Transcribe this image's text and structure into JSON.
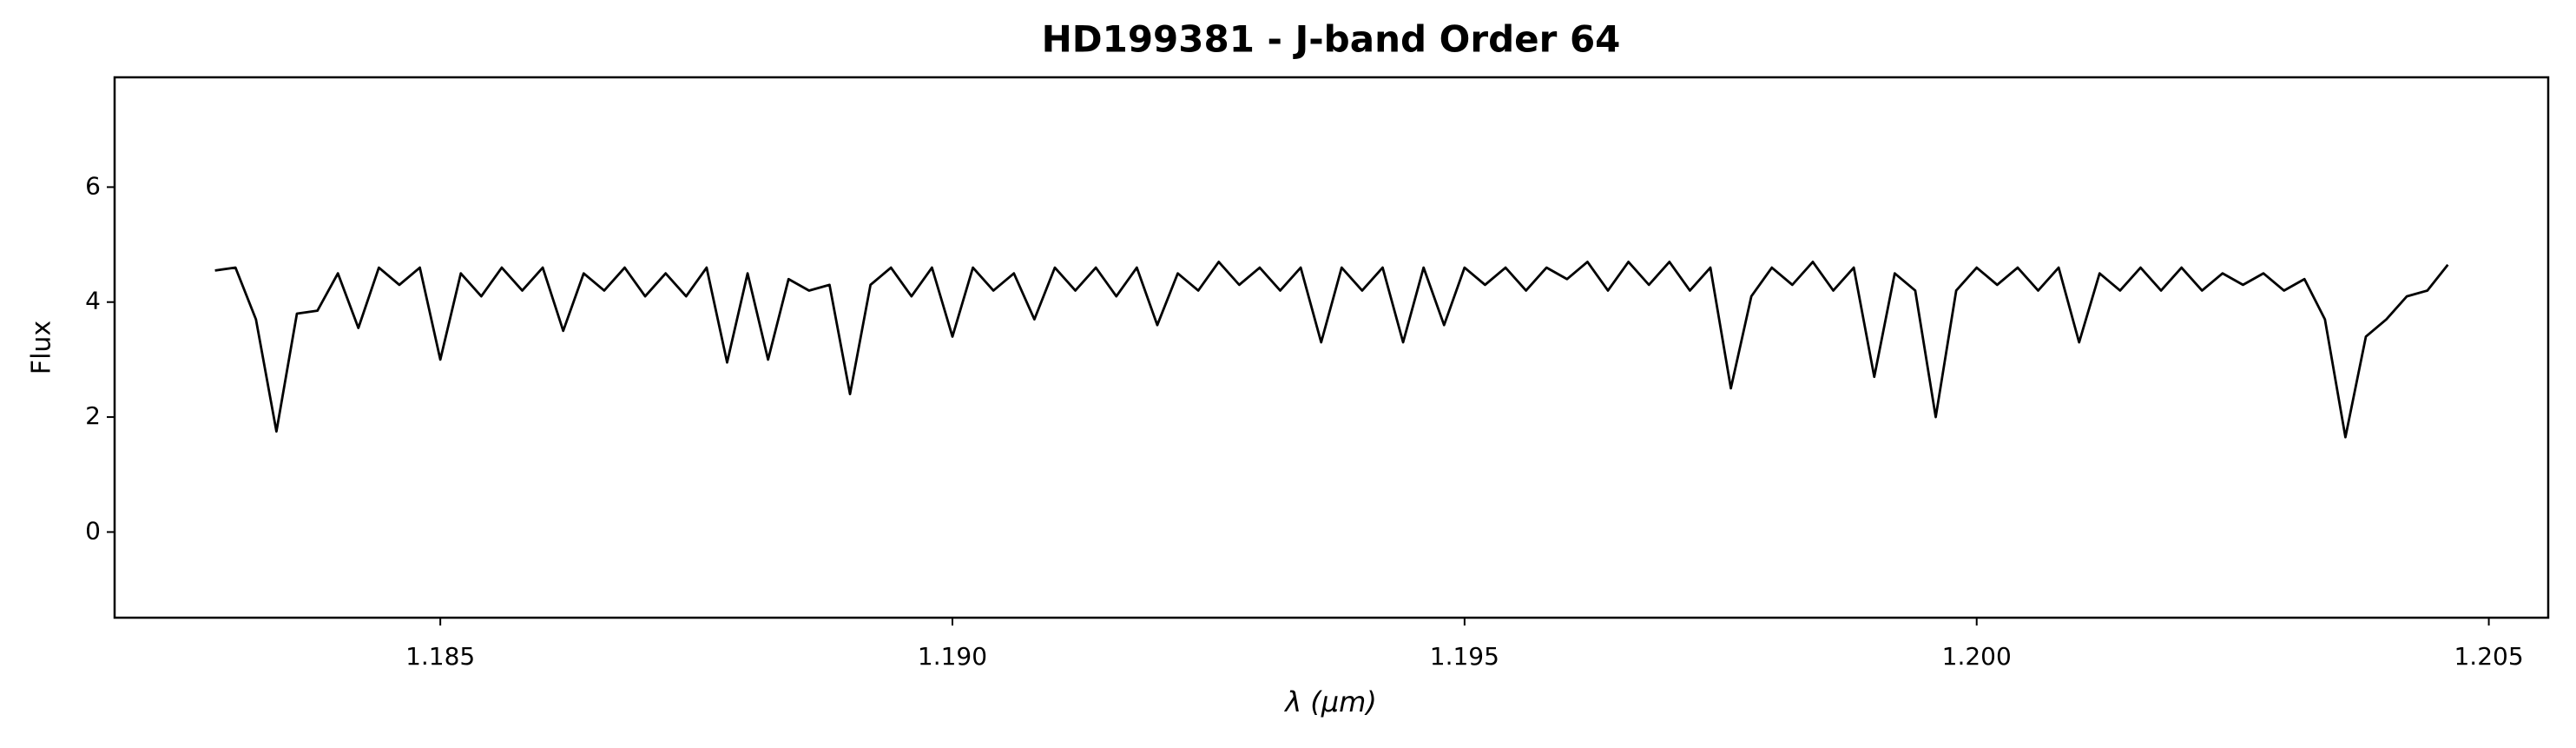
{
  "chart_data": {
    "type": "line",
    "title": "HD199381 - J-band Order 64",
    "xlabel": "λ (μm)",
    "ylabel": "Flux",
    "x": [
      1.1828,
      1.183,
      1.1832,
      1.1834,
      1.1836,
      1.1838,
      1.184,
      1.1842,
      1.1844,
      1.1846,
      1.1848,
      1.185,
      1.1852,
      1.1854,
      1.1856,
      1.1858,
      1.186,
      1.1862,
      1.1864,
      1.1866,
      1.1868,
      1.187,
      1.1872,
      1.1874,
      1.1876,
      1.1878,
      1.188,
      1.1882,
      1.1884,
      1.1886,
      1.1888,
      1.189,
      1.1892,
      1.1894,
      1.1896,
      1.1898,
      1.19,
      1.1902,
      1.1904,
      1.1906,
      1.1908,
      1.191,
      1.1912,
      1.1914,
      1.1916,
      1.1918,
      1.192,
      1.1922,
      1.1924,
      1.1926,
      1.1928,
      1.193,
      1.1932,
      1.1934,
      1.1936,
      1.1938,
      1.194,
      1.1942,
      1.1944,
      1.1946,
      1.1948,
      1.195,
      1.1952,
      1.1954,
      1.1956,
      1.1958,
      1.196,
      1.1962,
      1.1964,
      1.1966,
      1.1968,
      1.197,
      1.1972,
      1.1974,
      1.1976,
      1.1978,
      1.198,
      1.1982,
      1.1984,
      1.1986,
      1.1988,
      1.199,
      1.1992,
      1.1994,
      1.1996,
      1.1998,
      1.2,
      1.2002,
      1.2004,
      1.2006,
      1.2008,
      1.201,
      1.2012,
      1.2014,
      1.2016,
      1.2018,
      1.202,
      1.2022,
      1.2024,
      1.2026,
      1.2028,
      1.203,
      1.2032,
      1.2034,
      1.2036,
      1.2038,
      1.204,
      1.2042,
      1.2044,
      1.2046
    ],
    "series": [
      {
        "name": "Flux",
        "color": "#000000",
        "values": [
          4.55,
          4.6,
          3.7,
          1.75,
          3.8,
          3.85,
          4.5,
          3.55,
          4.6,
          4.3,
          4.6,
          3.0,
          4.5,
          4.1,
          4.6,
          4.2,
          4.6,
          3.5,
          4.5,
          4.2,
          4.6,
          4.1,
          4.5,
          4.1,
          4.6,
          2.95,
          4.5,
          3.0,
          4.4,
          4.2,
          4.3,
          2.4,
          4.3,
          4.6,
          4.1,
          4.6,
          3.4,
          4.6,
          4.2,
          4.5,
          3.7,
          4.6,
          4.2,
          4.6,
          4.1,
          4.6,
          3.6,
          4.5,
          4.2,
          4.7,
          4.3,
          4.6,
          4.2,
          4.6,
          3.3,
          4.6,
          4.2,
          4.6,
          3.3,
          4.6,
          3.6,
          4.6,
          4.3,
          4.6,
          4.2,
          4.6,
          4.4,
          4.7,
          4.2,
          4.7,
          4.3,
          4.7,
          4.2,
          4.6,
          2.5,
          4.1,
          4.6,
          4.3,
          4.7,
          4.2,
          4.6,
          2.7,
          4.5,
          4.2,
          2.0,
          4.2,
          4.6,
          4.3,
          4.6,
          4.2,
          4.6,
          3.3,
          4.5,
          4.2,
          4.6,
          4.2,
          4.6,
          4.2,
          4.5,
          4.3,
          4.5,
          4.2,
          4.4,
          3.7,
          1.65,
          3.4,
          3.7,
          4.1,
          4.2,
          4.65
        ]
      }
    ],
    "xlim": [
      1.18182,
      1.20558
    ],
    "ylim": [
      -1.49,
      7.91
    ],
    "xticks": [
      1.185,
      {
        "value": 1.19,
        "label": "1.190"
      },
      1.195,
      {
        "value": 1.2,
        "label": "1.200"
      },
      1.205
    ],
    "yticks": [
      0,
      2,
      4,
      6
    ]
  }
}
